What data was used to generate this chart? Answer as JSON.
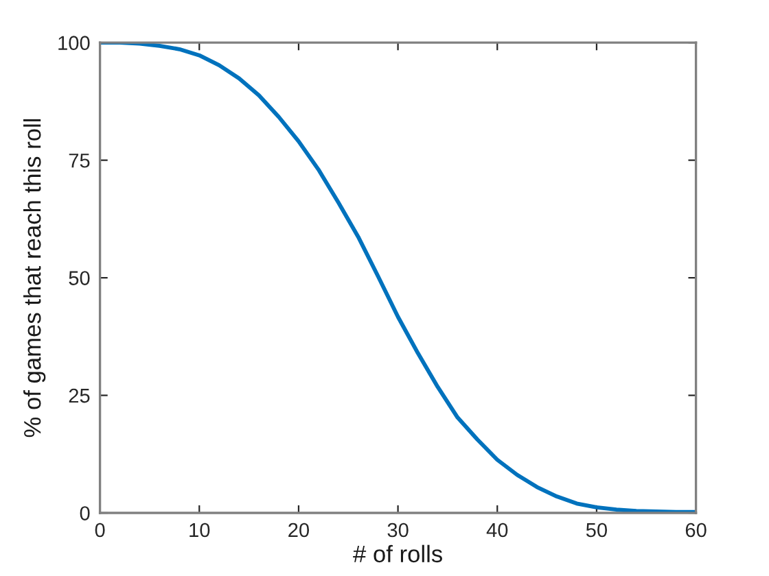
{
  "chart_data": {
    "type": "line",
    "xlabel": "# of rolls",
    "ylabel": "% of games that reach this roll",
    "xlim": [
      0,
      60
    ],
    "ylim": [
      0,
      100
    ],
    "xticks": [
      0,
      10,
      20,
      30,
      40,
      50,
      60
    ],
    "yticks": [
      0,
      25,
      50,
      75,
      100
    ],
    "grid": false,
    "marker": "none",
    "line_style": "solid",
    "series": [
      {
        "color": "#0072bd",
        "x": [
          0,
          2,
          4,
          6,
          8,
          10,
          12,
          14,
          16,
          18,
          20,
          22,
          24,
          26,
          28,
          30,
          32,
          34,
          36,
          38,
          40,
          42,
          44,
          46,
          48,
          50,
          52,
          54,
          56,
          58,
          60
        ],
        "values": [
          100,
          100,
          99.8,
          99.3,
          98.6,
          97.3,
          95.2,
          92.4,
          88.8,
          84.2,
          79.0,
          73.0,
          66.0,
          58.7,
          50.3,
          41.7,
          34.0,
          26.8,
          20.3,
          15.6,
          11.3,
          8.1,
          5.5,
          3.5,
          2.0,
          1.2,
          0.7,
          0.4,
          0.3,
          0.2,
          0.2
        ]
      }
    ]
  }
}
